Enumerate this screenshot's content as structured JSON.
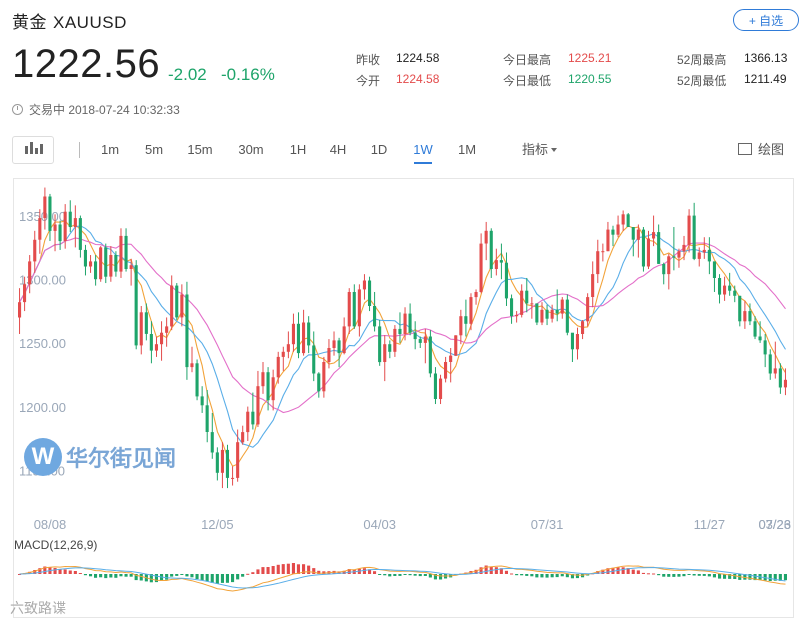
{
  "header": {
    "name": "黄金",
    "symbol": "XAUUSD",
    "follow_label": "+ 自选",
    "price": "1222.56",
    "change": "-2.02",
    "change_pct": "-0.16%",
    "status": "交易中 2018-07-24 10:32:33"
  },
  "stats": [
    {
      "label": "昨收",
      "value": "1224.58",
      "color": "#222222"
    },
    {
      "label": "今开",
      "value": "1224.58",
      "color": "#e34b4b"
    },
    {
      "label": "今日最高",
      "value": "1225.21",
      "color": "#e34b4b"
    },
    {
      "label": "今日最低",
      "value": "1220.55",
      "color": "#1ea46a"
    },
    {
      "label": "52周最高",
      "value": "1366.13",
      "color": "#222222"
    },
    {
      "label": "52周最低",
      "value": "1211.49",
      "color": "#222222"
    }
  ],
  "toolbar": {
    "tabs": [
      "1m",
      "5m",
      "15m",
      "30m",
      "1H",
      "4H",
      "1D",
      "1W",
      "1M"
    ],
    "active_tab": "1W",
    "indicator_label": "指标",
    "draw_label": "绘图"
  },
  "watermark": {
    "text": "华尔街见闻",
    "logo": "W",
    "secondary": "六致路谍"
  },
  "colors": {
    "up": "#e34b4b",
    "down": "#1ea46a",
    "accent": "#2f7bd8",
    "ma_fast": "#f2a33a",
    "ma_mid": "#5aaee8",
    "ma_slow": "#e36fc9"
  },
  "chart_data": {
    "type": "candlestick",
    "ylim": [
      1130,
      1375
    ],
    "y_ticks": [
      1350,
      1300,
      1250,
      1200,
      1150
    ],
    "y_tick_labels": [
      "1350.00",
      "1300.00",
      "1250.00",
      "1200.00",
      "1150.00"
    ],
    "x_tick_labels": [
      "08/08",
      "12/05",
      "04/03",
      "07/31",
      "11/27",
      "03/26",
      "07/23"
    ],
    "x_tick_index": [
      6,
      39,
      71,
      104,
      136,
      169,
      201
    ],
    "ohlc": [
      [
        1271,
        1294,
        1258,
        1283
      ],
      [
        1283,
        1303,
        1276,
        1297
      ],
      [
        1297,
        1320,
        1290,
        1315
      ],
      [
        1315,
        1339,
        1306,
        1332
      ],
      [
        1332,
        1356,
        1321,
        1349
      ],
      [
        1349,
        1373,
        1340,
        1366
      ],
      [
        1366,
        1368,
        1331,
        1339
      ],
      [
        1339,
        1352,
        1323,
        1344
      ],
      [
        1344,
        1347,
        1324,
        1331
      ],
      [
        1331,
        1360,
        1325,
        1354
      ],
      [
        1354,
        1363,
        1338,
        1342
      ],
      [
        1342,
        1359,
        1326,
        1349
      ],
      [
        1349,
        1351,
        1318,
        1324
      ],
      [
        1324,
        1328,
        1304,
        1311
      ],
      [
        1311,
        1320,
        1306,
        1315
      ],
      [
        1315,
        1320,
        1296,
        1301
      ],
      [
        1301,
        1327,
        1299,
        1326
      ],
      [
        1326,
        1329,
        1298,
        1303
      ],
      [
        1303,
        1327,
        1299,
        1320
      ],
      [
        1320,
        1323,
        1303,
        1307
      ],
      [
        1307,
        1341,
        1302,
        1335
      ],
      [
        1335,
        1341,
        1307,
        1309
      ],
      [
        1309,
        1317,
        1296,
        1312
      ],
      [
        1312,
        1316,
        1246,
        1249
      ],
      [
        1249,
        1280,
        1242,
        1275
      ],
      [
        1275,
        1282,
        1253,
        1258
      ],
      [
        1258,
        1268,
        1235,
        1245
      ],
      [
        1245,
        1256,
        1240,
        1250
      ],
      [
        1250,
        1268,
        1237,
        1259
      ],
      [
        1259,
        1271,
        1248,
        1264
      ],
      [
        1264,
        1304,
        1261,
        1296
      ],
      [
        1296,
        1298,
        1269,
        1271
      ],
      [
        1271,
        1297,
        1264,
        1289
      ],
      [
        1289,
        1299,
        1222,
        1232
      ],
      [
        1232,
        1248,
        1228,
        1235
      ],
      [
        1235,
        1238,
        1206,
        1209
      ],
      [
        1209,
        1217,
        1196,
        1202
      ],
      [
        1202,
        1214,
        1173,
        1181
      ],
      [
        1181,
        1196,
        1160,
        1165
      ],
      [
        1165,
        1169,
        1143,
        1149
      ],
      [
        1149,
        1173,
        1137,
        1167
      ],
      [
        1167,
        1171,
        1137,
        1145
      ],
      [
        1145,
        1154,
        1139,
        1145
      ],
      [
        1145,
        1183,
        1142,
        1173
      ],
      [
        1173,
        1186,
        1171,
        1181
      ],
      [
        1181,
        1201,
        1174,
        1197
      ],
      [
        1197,
        1212,
        1183,
        1187
      ],
      [
        1187,
        1229,
        1185,
        1217
      ],
      [
        1217,
        1236,
        1211,
        1228
      ],
      [
        1228,
        1232,
        1198,
        1206
      ],
      [
        1206,
        1230,
        1198,
        1224
      ],
      [
        1224,
        1244,
        1219,
        1240
      ],
      [
        1240,
        1248,
        1229,
        1244
      ],
      [
        1244,
        1260,
        1239,
        1250
      ],
      [
        1250,
        1274,
        1244,
        1266
      ],
      [
        1266,
        1275,
        1239,
        1243
      ],
      [
        1243,
        1277,
        1241,
        1267
      ],
      [
        1267,
        1272,
        1243,
        1249
      ],
      [
        1249,
        1260,
        1221,
        1227
      ],
      [
        1227,
        1228,
        1208,
        1213
      ],
      [
        1213,
        1240,
        1208,
        1236
      ],
      [
        1236,
        1254,
        1231,
        1247
      ],
      [
        1247,
        1260,
        1241,
        1253
      ],
      [
        1253,
        1255,
        1232,
        1243
      ],
      [
        1243,
        1271,
        1242,
        1264
      ],
      [
        1264,
        1294,
        1258,
        1291
      ],
      [
        1291,
        1297,
        1262,
        1264
      ],
      [
        1264,
        1297,
        1256,
        1293
      ],
      [
        1293,
        1305,
        1285,
        1300
      ],
      [
        1300,
        1303,
        1276,
        1280
      ],
      [
        1280,
        1291,
        1260,
        1264
      ],
      [
        1264,
        1269,
        1233,
        1236
      ],
      [
        1236,
        1257,
        1221,
        1250
      ],
      [
        1250,
        1253,
        1239,
        1244
      ],
      [
        1244,
        1265,
        1240,
        1262
      ],
      [
        1262,
        1275,
        1251,
        1258
      ],
      [
        1258,
        1279,
        1253,
        1274
      ],
      [
        1274,
        1282,
        1257,
        1259
      ],
      [
        1259,
        1268,
        1246,
        1254
      ],
      [
        1254,
        1256,
        1247,
        1251
      ],
      [
        1251,
        1262,
        1235,
        1256
      ],
      [
        1256,
        1261,
        1224,
        1227
      ],
      [
        1227,
        1232,
        1203,
        1207
      ],
      [
        1207,
        1226,
        1203,
        1223
      ],
      [
        1223,
        1240,
        1220,
        1236
      ],
      [
        1236,
        1247,
        1220,
        1241
      ],
      [
        1241,
        1257,
        1241,
        1257
      ],
      [
        1257,
        1277,
        1250,
        1272
      ],
      [
        1272,
        1285,
        1256,
        1266
      ],
      [
        1266,
        1290,
        1261,
        1287
      ],
      [
        1287,
        1293,
        1281,
        1291
      ],
      [
        1291,
        1337,
        1290,
        1329
      ],
      [
        1329,
        1346,
        1316,
        1339
      ],
      [
        1339,
        1341,
        1302,
        1309
      ],
      [
        1309,
        1325,
        1304,
        1316
      ],
      [
        1316,
        1329,
        1301,
        1314
      ],
      [
        1314,
        1322,
        1280,
        1286
      ],
      [
        1286,
        1289,
        1266,
        1272
      ],
      [
        1272,
        1276,
        1267,
        1273
      ],
      [
        1273,
        1297,
        1271,
        1292
      ],
      [
        1292,
        1302,
        1275,
        1282
      ],
      [
        1282,
        1287,
        1270,
        1282
      ],
      [
        1282,
        1282,
        1265,
        1267
      ],
      [
        1267,
        1283,
        1265,
        1277
      ],
      [
        1277,
        1281,
        1265,
        1270
      ],
      [
        1270,
        1281,
        1267,
        1277
      ],
      [
        1277,
        1293,
        1268,
        1274
      ],
      [
        1274,
        1287,
        1270,
        1285
      ],
      [
        1285,
        1289,
        1257,
        1259
      ],
      [
        1259,
        1258,
        1236,
        1246
      ],
      [
        1246,
        1263,
        1238,
        1258
      ],
      [
        1258,
        1269,
        1254,
        1268
      ],
      [
        1268,
        1290,
        1264,
        1287
      ],
      [
        1287,
        1315,
        1279,
        1305
      ],
      [
        1305,
        1332,
        1298,
        1323
      ],
      [
        1323,
        1329,
        1315,
        1323
      ],
      [
        1323,
        1346,
        1323,
        1340
      ],
      [
        1340,
        1343,
        1327,
        1336
      ],
      [
        1336,
        1351,
        1334,
        1344
      ],
      [
        1344,
        1355,
        1339,
        1352
      ],
      [
        1352,
        1353,
        1342,
        1342
      ],
      [
        1342,
        1342,
        1319,
        1332
      ],
      [
        1332,
        1344,
        1318,
        1340
      ],
      [
        1340,
        1342,
        1307,
        1311
      ],
      [
        1311,
        1339,
        1309,
        1333
      ],
      [
        1333,
        1351,
        1327,
        1338
      ],
      [
        1338,
        1344,
        1313,
        1313
      ],
      [
        1313,
        1314,
        1297,
        1305
      ],
      [
        1305,
        1321,
        1293,
        1319
      ],
      [
        1319,
        1342,
        1308,
        1318
      ],
      [
        1318,
        1325,
        1310,
        1323
      ],
      [
        1323,
        1335,
        1316,
        1328
      ],
      [
        1328,
        1356,
        1322,
        1351
      ],
      [
        1351,
        1361,
        1316,
        1317
      ],
      [
        1317,
        1326,
        1311,
        1322
      ],
      [
        1322,
        1334,
        1317,
        1324
      ],
      [
        1324,
        1334,
        1305,
        1315
      ],
      [
        1315,
        1315,
        1291,
        1302
      ],
      [
        1302,
        1305,
        1282,
        1289
      ],
      [
        1289,
        1303,
        1284,
        1296
      ],
      [
        1296,
        1306,
        1288,
        1292
      ],
      [
        1292,
        1296,
        1283,
        1288
      ],
      [
        1288,
        1288,
        1264,
        1268
      ],
      [
        1268,
        1284,
        1262,
        1276
      ],
      [
        1276,
        1282,
        1265,
        1268
      ],
      [
        1268,
        1272,
        1254,
        1256
      ],
      [
        1256,
        1268,
        1251,
        1253
      ],
      [
        1253,
        1258,
        1232,
        1242
      ],
      [
        1242,
        1246,
        1222,
        1227
      ],
      [
        1227,
        1252,
        1223,
        1231
      ],
      [
        1231,
        1235,
        1211,
        1216
      ],
      [
        1216,
        1231,
        1210,
        1222
      ]
    ]
  }
}
